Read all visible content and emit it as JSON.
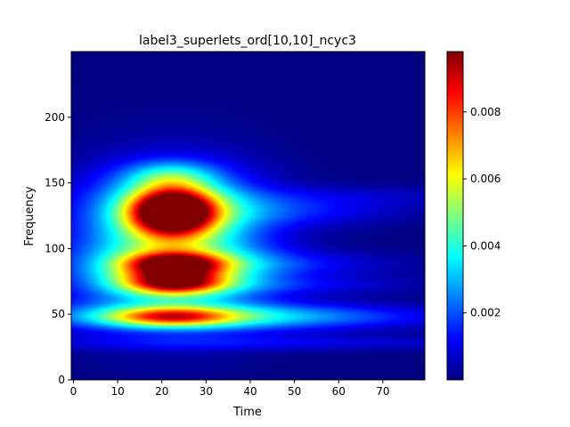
{
  "chart_data": {
    "type": "heatmap",
    "title": "label3_superlets_ord[10,10]_ncyc3",
    "xlabel": "Time",
    "ylabel": "Frequency",
    "colormap": "jet",
    "xlim": [
      -0.5,
      79.5
    ],
    "ylim": [
      0,
      250
    ],
    "x_ticks": [
      0,
      10,
      20,
      30,
      40,
      50,
      60,
      70
    ],
    "y_ticks": [
      0,
      50,
      100,
      150,
      200
    ],
    "colorbar": {
      "vmin": 0.0,
      "vmax": 0.0098,
      "ticks": [
        0.002,
        0.004,
        0.006,
        0.008
      ],
      "tick_labels": [
        "0.002",
        "0.004",
        "0.006",
        "0.008"
      ]
    },
    "blobs": [
      {
        "x": 22.5,
        "y": 128,
        "sx": 6.5,
        "sy": 12,
        "value": 0.0098
      },
      {
        "x": 22.5,
        "y": 127,
        "sx": 13,
        "sy": 22,
        "value": 0.0035
      },
      {
        "x": 23,
        "y": 88,
        "sx": 7.5,
        "sy": 6,
        "value": 0.0062
      },
      {
        "x": 23,
        "y": 74,
        "sx": 7.5,
        "sy": 6,
        "value": 0.0058
      },
      {
        "x": 22,
        "y": 82,
        "sx": 14,
        "sy": 16,
        "value": 0.004
      },
      {
        "x": 22,
        "y": 48,
        "sx": 10,
        "sy": 5,
        "value": 0.0048
      },
      {
        "x": 27,
        "y": 48,
        "sx": 26,
        "sy": 8,
        "value": 0.0028
      },
      {
        "x": 22,
        "y": 155,
        "sx": 7,
        "sy": 8,
        "value": 0.0022
      },
      {
        "x": 22,
        "y": 100,
        "sx": 16,
        "sy": 45,
        "value": 0.0017
      },
      {
        "x": 48,
        "y": 128,
        "sx": 18,
        "sy": 8,
        "value": 0.0012
      },
      {
        "x": 48,
        "y": 88,
        "sx": 18,
        "sy": 7,
        "value": 0.0011
      },
      {
        "x": 50,
        "y": 72,
        "sx": 20,
        "sy": 5,
        "value": 0.0009
      },
      {
        "x": 55,
        "y": 48,
        "sx": 25,
        "sy": 6,
        "value": 0.0011
      },
      {
        "x": 60,
        "y": 140,
        "sx": 25,
        "sy": 6,
        "value": 0.0006
      },
      {
        "x": 40,
        "y": 28,
        "sx": 40,
        "sy": 4,
        "value": 0.001
      }
    ]
  }
}
